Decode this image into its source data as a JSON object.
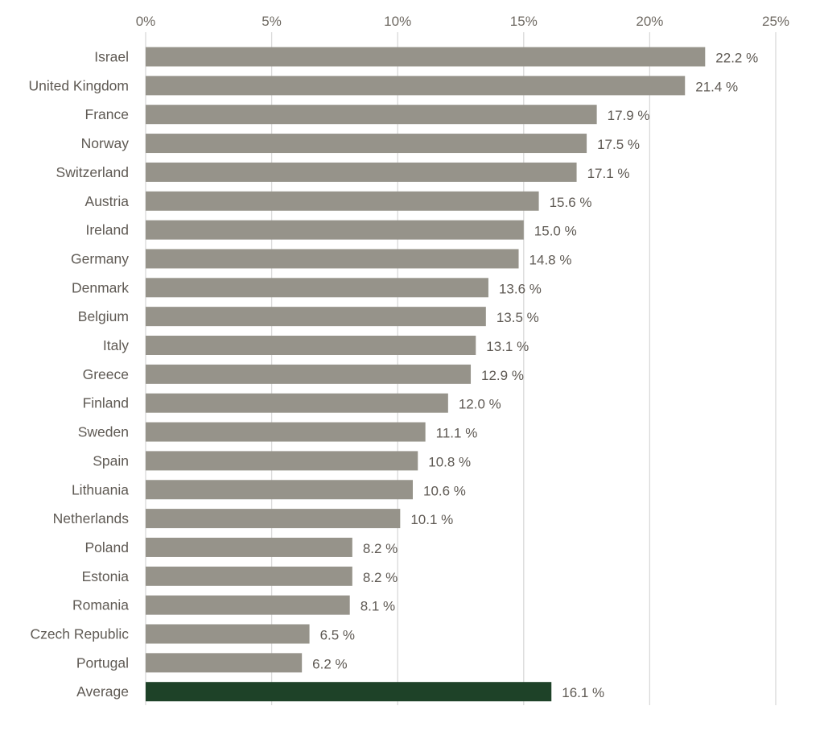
{
  "chart_data": {
    "type": "bar",
    "orientation": "horizontal",
    "categories": [
      "Israel",
      "United Kingdom",
      "France",
      "Norway",
      "Switzerland",
      "Austria",
      "Ireland",
      "Germany",
      "Denmark",
      "Belgium",
      "Italy",
      "Greece",
      "Finland",
      "Sweden",
      "Spain",
      "Lithuania",
      "Netherlands",
      "Poland",
      "Estonia",
      "Romania",
      "Czech Republic",
      "Portugal",
      "Average"
    ],
    "values": [
      22.2,
      21.4,
      17.9,
      17.5,
      17.1,
      15.6,
      15.0,
      14.8,
      13.6,
      13.5,
      13.1,
      12.9,
      12.0,
      11.1,
      10.8,
      10.6,
      10.1,
      8.2,
      8.2,
      8.1,
      6.5,
      6.2,
      16.1
    ],
    "data_labels": [
      "22.2 %",
      "21.4 %",
      "17.9 %",
      "17.5 %",
      "17.1 %",
      "15.6 %",
      "15.0 %",
      "14.8 %",
      "13.6 %",
      "13.5 %",
      "13.1 %",
      "12.9 %",
      "12.0 %",
      "11.1 %",
      "10.8 %",
      "10.6 %",
      "10.1 %",
      "8.2 %",
      "8.2 %",
      "8.1 %",
      "6.5 %",
      "6.2 %",
      "16.1 %"
    ],
    "xlim": [
      0,
      25
    ],
    "x_ticks": [
      0,
      5,
      10,
      15,
      20,
      25
    ],
    "x_tick_labels": [
      "0%",
      "5%",
      "10%",
      "15%",
      "20%",
      "25%"
    ],
    "x_axis_position": "top",
    "grid": true,
    "highlight_category": "Average",
    "colors": {
      "bar": "#96938a",
      "highlight": "#1e4228",
      "grid": "#d9d9d9",
      "text": "#5f5a54"
    }
  }
}
